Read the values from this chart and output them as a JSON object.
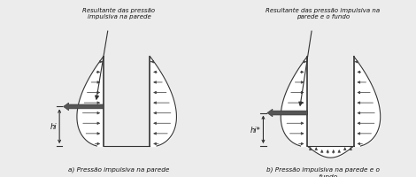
{
  "bg_color": "#ececec",
  "title_a": "a) Pressão impulsiva na parede",
  "title_b": "b) Pressão impulsiva na parede e o\n     fundo",
  "label_a": "Resultante das pressão\nimpulsiva na parede",
  "label_b": "Resultante das pressão impulsiva na\nparede e o fundo",
  "hi_label": "hi",
  "hi_star_label": "hi*",
  "line_color": "#333333",
  "arrow_color": "#444444",
  "fill_color": "#ffffff",
  "resultant_color": "#555555"
}
